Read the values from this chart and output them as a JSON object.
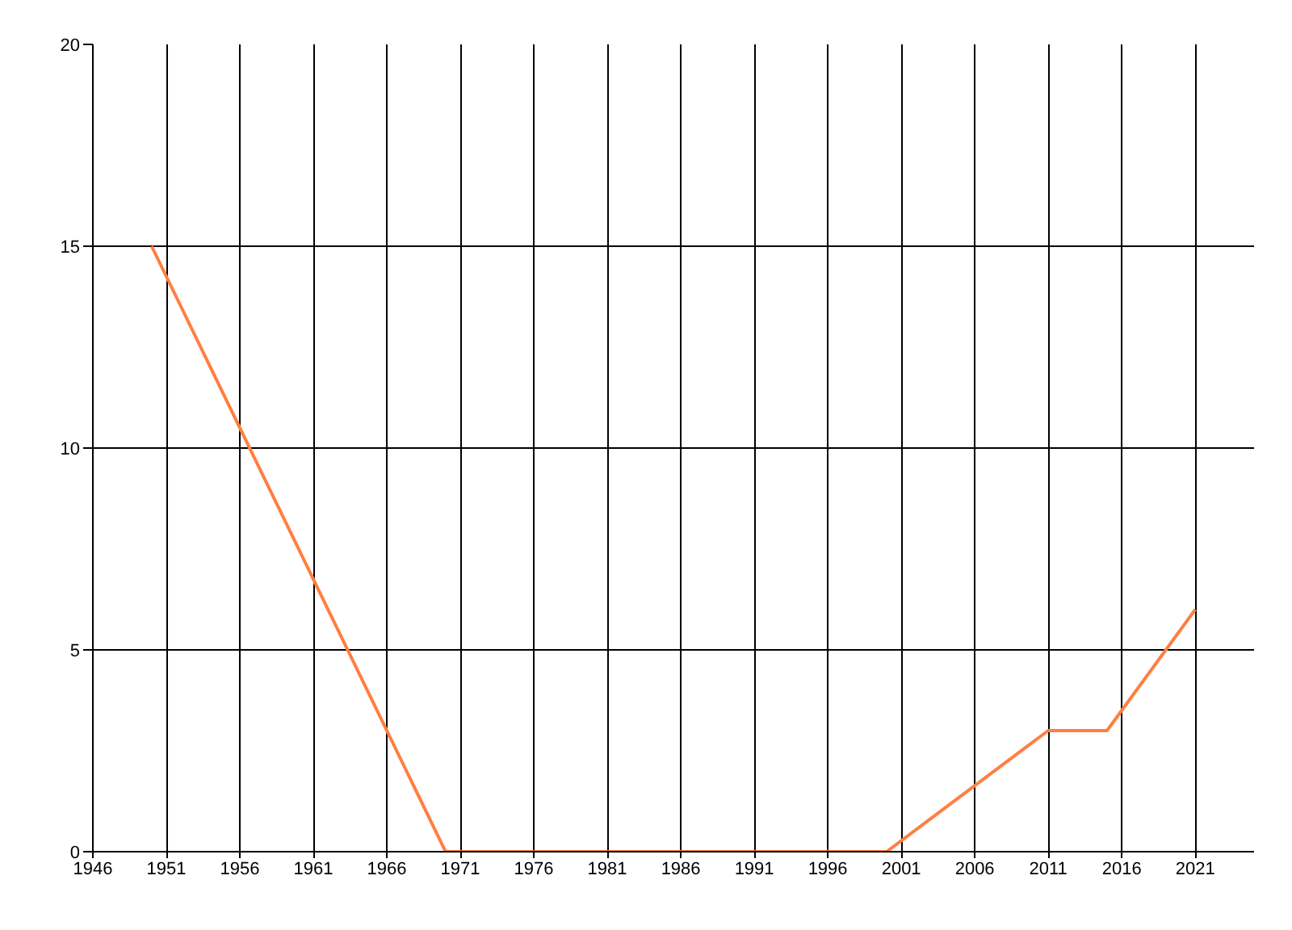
{
  "chart_data": {
    "type": "line",
    "x": [
      1950,
      1970,
      1990,
      2000,
      2011,
      2015,
      2021
    ],
    "series": [
      {
        "color": "#ff7f40",
        "values": [
          15,
          0,
          0,
          0,
          3,
          3,
          6
        ]
      }
    ],
    "xlim": [
      1946,
      2025
    ],
    "xticks": [
      1946,
      1951,
      1956,
      1961,
      1966,
      1971,
      1976,
      1981,
      1986,
      1991,
      1996,
      2001,
      2006,
      2011,
      2016,
      2021
    ],
    "ylim": [
      0,
      20
    ],
    "yticks": [
      0,
      5,
      10,
      15,
      20
    ],
    "grid": true,
    "line_style": "solid"
  }
}
